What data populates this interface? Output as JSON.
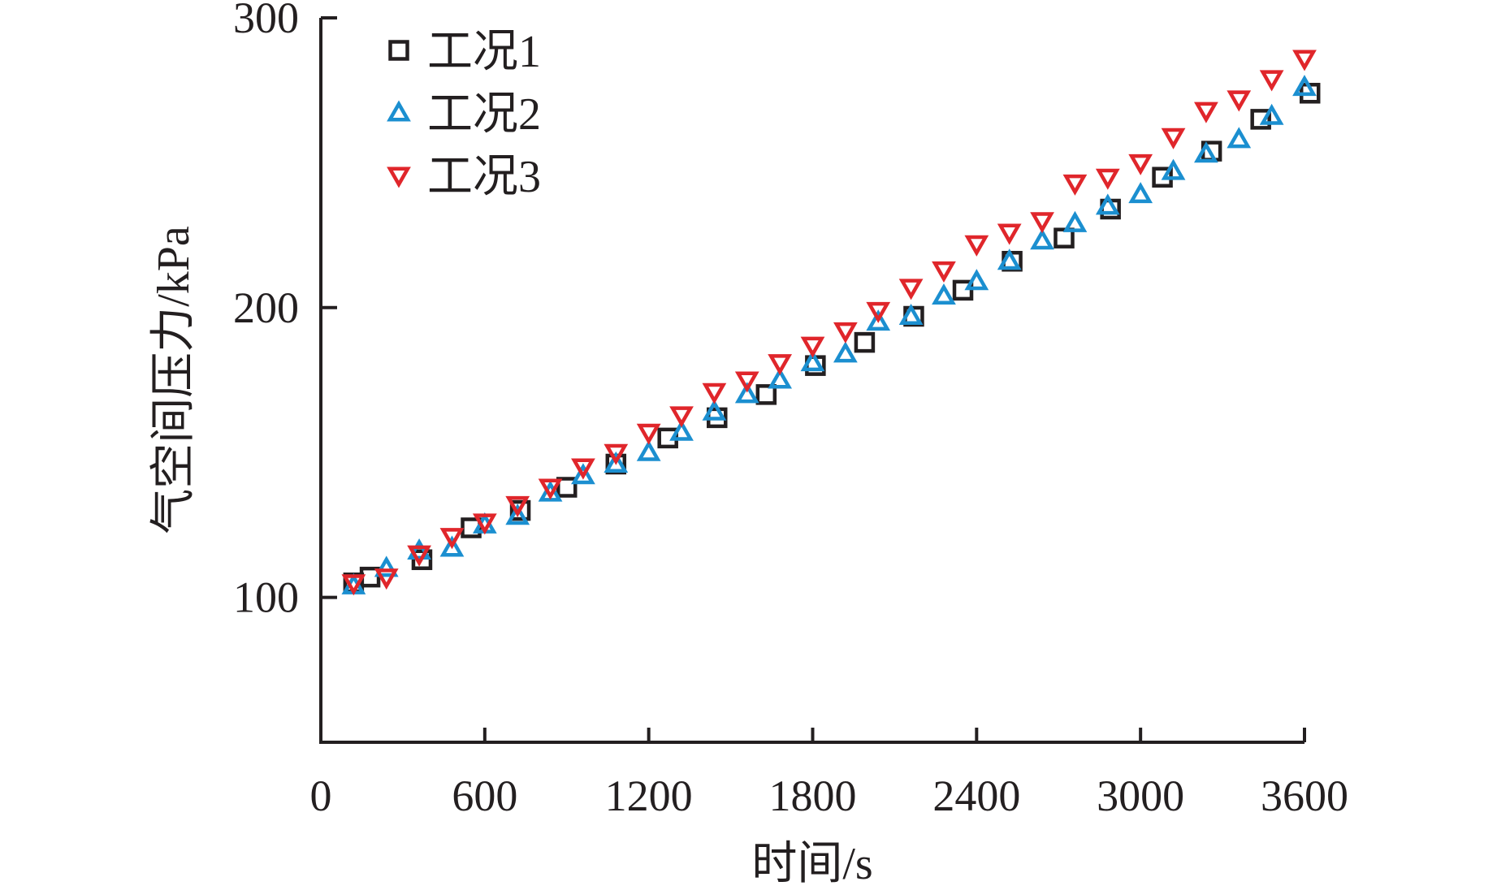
{
  "chart_data": {
    "type": "scatter",
    "title": "",
    "xlabel": "时间/s",
    "ylabel": "气空间压力/kPa",
    "xlim": [
      0,
      3600
    ],
    "ylim": [
      50,
      300
    ],
    "xticks": [
      "0",
      "600",
      "1200",
      "1800",
      "2400",
      "3000",
      "3600"
    ],
    "yticks": [
      "100",
      "200",
      "300"
    ],
    "grid": false,
    "legend_position": "top-left",
    "series": [
      {
        "name": "工况1",
        "marker": "square",
        "color": "#231f20",
        "x": [
          120,
          180,
          370,
          550,
          730,
          900,
          1080,
          1270,
          1450,
          1630,
          1810,
          1990,
          2170,
          2350,
          2530,
          2720,
          2890,
          3080,
          3260,
          3440,
          3620
        ],
        "y": [
          105,
          107,
          113,
          124,
          130,
          138,
          146,
          155,
          162,
          170,
          180,
          188,
          197,
          206,
          216,
          224,
          234,
          245,
          254,
          265,
          274
        ]
      },
      {
        "name": "工况2",
        "marker": "triangle-up",
        "color": "#1b8fd0",
        "x": [
          120,
          240,
          360,
          480,
          600,
          720,
          840,
          960,
          1080,
          1200,
          1320,
          1440,
          1560,
          1680,
          1800,
          1920,
          2040,
          2160,
          2280,
          2400,
          2520,
          2640,
          2760,
          2880,
          3000,
          3120,
          3240,
          3360,
          3480,
          3600
        ],
        "y": [
          104,
          110,
          116,
          117,
          125,
          128,
          136,
          142,
          146,
          150,
          157,
          164,
          170,
          175,
          181,
          184,
          195,
          197,
          204,
          209,
          216,
          223,
          229,
          235,
          239,
          247,
          253,
          258,
          266,
          276
        ]
      },
      {
        "name": "工况3",
        "marker": "triangle-down",
        "color": "#e0262b",
        "x": [
          120,
          240,
          360,
          480,
          600,
          720,
          840,
          960,
          1080,
          1200,
          1320,
          1440,
          1560,
          1680,
          1800,
          1920,
          2040,
          2160,
          2280,
          2400,
          2520,
          2640,
          2760,
          2880,
          3000,
          3120,
          3240,
          3360,
          3480,
          3600
        ],
        "y": [
          105,
          107,
          115,
          121,
          126,
          132,
          138,
          145,
          150,
          157,
          163,
          171,
          175,
          181,
          187,
          192,
          199,
          207,
          213,
          222,
          226,
          230,
          243,
          245,
          250,
          259,
          268,
          272,
          279,
          286
        ]
      }
    ]
  }
}
